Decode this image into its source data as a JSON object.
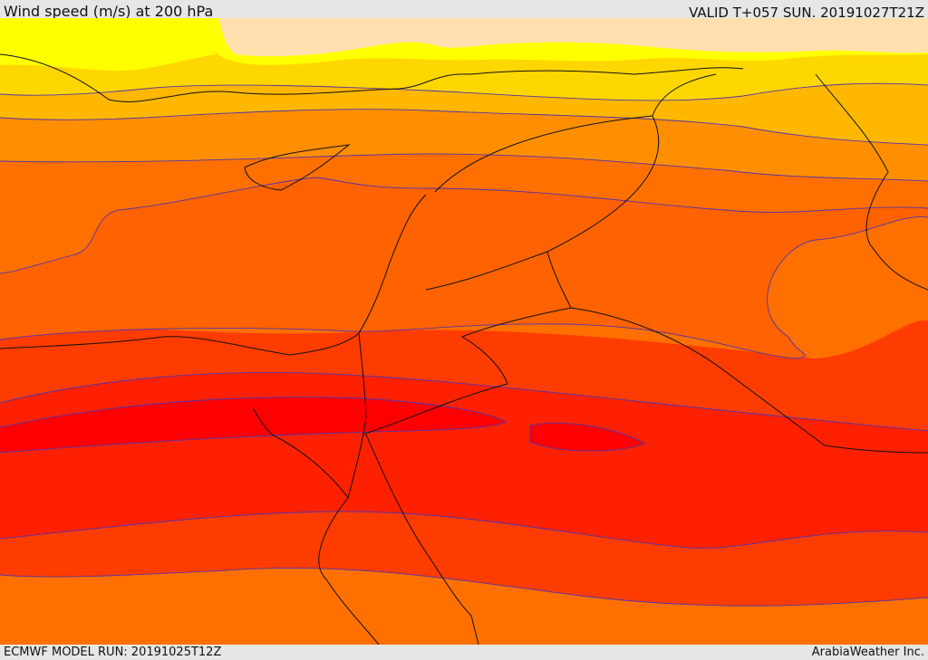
{
  "header": {
    "title": "Wind speed (m/s) at 200 hPa",
    "valid_time": "VALID T+057 SUN. 20191027T21Z"
  },
  "footer": {
    "model_run": "ECMWF MODEL RUN: 20191025T12Z",
    "brand": "ArabiaWeather Inc."
  },
  "map": {
    "colors": {
      "lowest": "#ffdfae",
      "very_low": "#ffff00",
      "low": "#ffd700",
      "low_mid": "#ffb700",
      "mid": "#ff8f00",
      "mid_high": "#ff7000",
      "high": "#ff6200",
      "very_high": "#ff3c00",
      "jet": "#ff2000",
      "jet_core": "#ff0000",
      "contour": "#5533aa",
      "border": "#111111"
    }
  }
}
